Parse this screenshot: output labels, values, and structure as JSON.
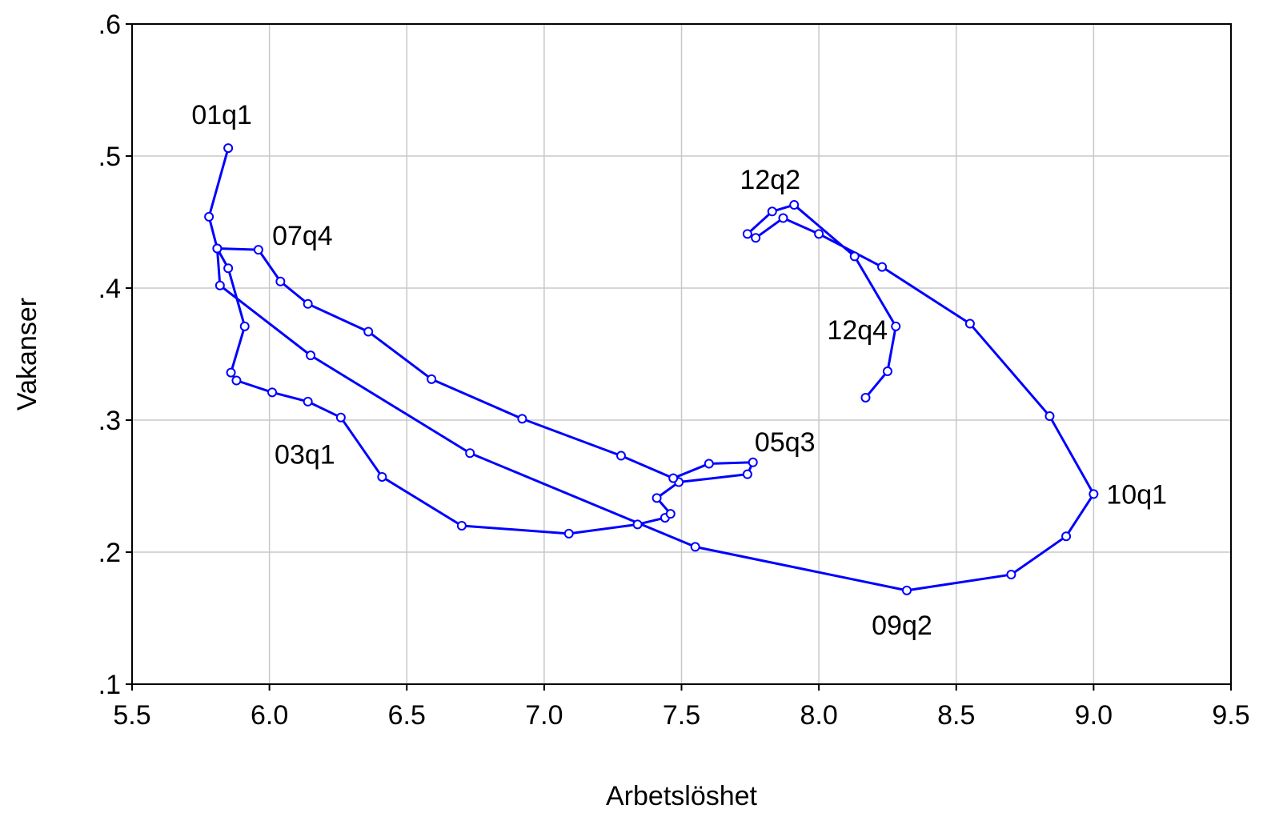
{
  "chart_data": {
    "type": "line",
    "xlabel": "Arbetslöshet",
    "ylabel": "Vakanser",
    "xlim": [
      5.5,
      9.5
    ],
    "ylim": [
      0.1,
      0.6
    ],
    "x_ticks": [
      5.5,
      6.0,
      6.5,
      7.0,
      7.5,
      8.0,
      8.5,
      9.0,
      9.5
    ],
    "x_tick_labels": [
      "5.5",
      "6.0",
      "6.5",
      "7.0",
      "7.5",
      "8.0",
      "8.5",
      "9.0",
      "9.5"
    ],
    "y_ticks": [
      0.1,
      0.2,
      0.3,
      0.4,
      0.5,
      0.6
    ],
    "y_tick_labels": [
      ".1",
      ".2",
      ".3",
      ".4",
      ".5",
      ".6"
    ],
    "grid": true,
    "series": [
      {
        "color": "#0000ff",
        "marker": "open-circle",
        "points": [
          {
            "x": 5.85,
            "y": 0.506,
            "label": "01q1"
          },
          {
            "x": 5.78,
            "y": 0.454
          },
          {
            "x": 5.81,
            "y": 0.43
          },
          {
            "x": 5.85,
            "y": 0.415
          },
          {
            "x": 5.91,
            "y": 0.371
          },
          {
            "x": 5.86,
            "y": 0.336
          },
          {
            "x": 5.88,
            "y": 0.33
          },
          {
            "x": 6.01,
            "y": 0.321
          },
          {
            "x": 6.14,
            "y": 0.314
          },
          {
            "x": 6.26,
            "y": 0.302,
            "label": "03q1"
          },
          {
            "x": 6.41,
            "y": 0.257
          },
          {
            "x": 6.7,
            "y": 0.22
          },
          {
            "x": 7.09,
            "y": 0.214
          },
          {
            "x": 7.34,
            "y": 0.221
          },
          {
            "x": 7.44,
            "y": 0.226
          },
          {
            "x": 7.46,
            "y": 0.229
          },
          {
            "x": 7.41,
            "y": 0.241
          },
          {
            "x": 7.49,
            "y": 0.253
          },
          {
            "x": 7.74,
            "y": 0.259
          },
          {
            "x": 7.76,
            "y": 0.268,
            "label": "05q3"
          },
          {
            "x": 7.6,
            "y": 0.267
          },
          {
            "x": 7.47,
            "y": 0.256
          },
          {
            "x": 7.28,
            "y": 0.273
          },
          {
            "x": 6.92,
            "y": 0.301
          },
          {
            "x": 6.59,
            "y": 0.331
          },
          {
            "x": 6.36,
            "y": 0.367
          },
          {
            "x": 6.14,
            "y": 0.388
          },
          {
            "x": 6.04,
            "y": 0.405
          },
          {
            "x": 5.96,
            "y": 0.429,
            "label": "07q4"
          },
          {
            "x": 5.81,
            "y": 0.43
          },
          {
            "x": 5.82,
            "y": 0.402
          },
          {
            "x": 6.15,
            "y": 0.349
          },
          {
            "x": 6.73,
            "y": 0.275
          },
          {
            "x": 7.55,
            "y": 0.204
          },
          {
            "x": 8.32,
            "y": 0.171,
            "label": "09q2"
          },
          {
            "x": 8.7,
            "y": 0.183
          },
          {
            "x": 8.9,
            "y": 0.212
          },
          {
            "x": 9.0,
            "y": 0.244,
            "label": "10q1"
          },
          {
            "x": 8.84,
            "y": 0.303
          },
          {
            "x": 8.55,
            "y": 0.373
          },
          {
            "x": 8.23,
            "y": 0.416
          },
          {
            "x": 8.0,
            "y": 0.441
          },
          {
            "x": 7.87,
            "y": 0.453
          },
          {
            "x": 7.77,
            "y": 0.438
          },
          {
            "x": 7.74,
            "y": 0.441
          },
          {
            "x": 7.83,
            "y": 0.458
          },
          {
            "x": 7.91,
            "y": 0.463,
            "label": "12q2"
          },
          {
            "x": 8.13,
            "y": 0.424
          },
          {
            "x": 8.28,
            "y": 0.371,
            "label": "12q4"
          },
          {
            "x": 8.25,
            "y": 0.337
          },
          {
            "x": 8.17,
            "y": 0.317
          }
        ]
      }
    ]
  }
}
